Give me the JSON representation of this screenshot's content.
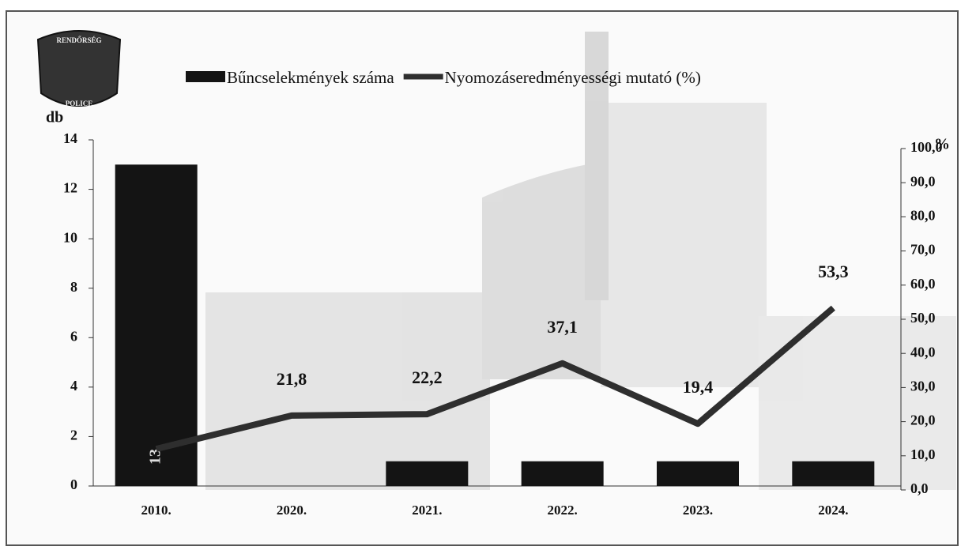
{
  "logo": {
    "top": "RENDŐRSÉG",
    "bottom": "POLICE"
  },
  "chart_data": {
    "type": "bar-line",
    "y_label": "db",
    "y2_label": "%",
    "categories": [
      "2010.",
      "2020.",
      "2021.",
      "2022.",
      "2023.",
      "2024."
    ],
    "series": [
      {
        "name": "Bűncselekmények száma",
        "type": "bar",
        "color": "#141414",
        "values": [
          13,
          0,
          1,
          1,
          1,
          1
        ],
        "value_labels": [
          "13",
          null,
          null,
          null,
          null,
          null
        ]
      },
      {
        "name": "Nyomozáseredményességi mutató (%)",
        "type": "line",
        "axis": "y2",
        "color": "#2e2e2e",
        "values": [
          12,
          21.8,
          22.2,
          37.1,
          19.4,
          53.3
        ],
        "value_labels": [
          null,
          "21,8",
          "22,2",
          "37,1",
          "19,4",
          "53,3"
        ]
      }
    ],
    "ylim": [
      0,
      14
    ],
    "yticks": [
      0,
      2,
      4,
      6,
      8,
      10,
      12,
      14
    ],
    "y2lim": [
      0,
      100
    ],
    "y2ticks": [
      {
        "value": 0,
        "label": "0,0"
      },
      {
        "value": 10,
        "label": "10,0"
      },
      {
        "value": 20,
        "label": "20,0"
      },
      {
        "value": 30,
        "label": "30,0"
      },
      {
        "value": 40,
        "label": "40,0"
      },
      {
        "value": 50,
        "label": "50,0"
      },
      {
        "value": 60,
        "label": "60,0"
      },
      {
        "value": 70,
        "label": "70,0"
      },
      {
        "value": 80,
        "label": "80,0"
      },
      {
        "value": 90,
        "label": "90,0"
      },
      {
        "value": 100,
        "label": "100,0"
      }
    ]
  }
}
